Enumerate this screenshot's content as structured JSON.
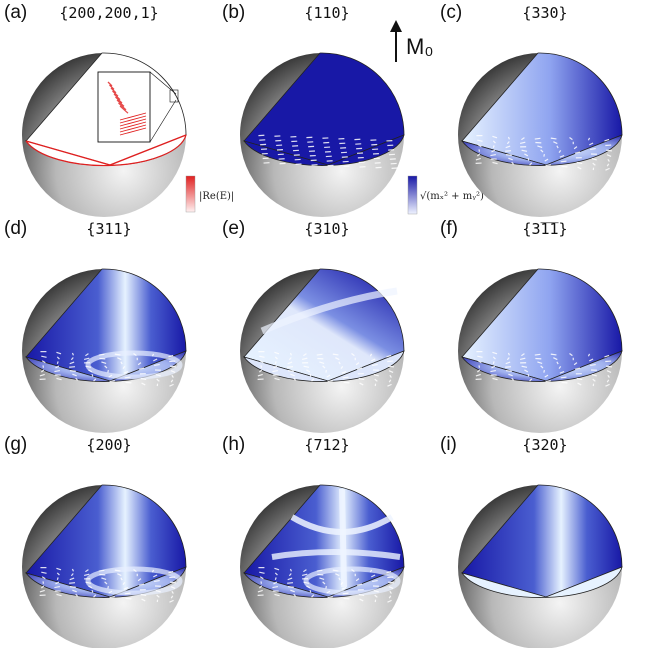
{
  "panels": [
    {
      "id": "a",
      "label": "(a)",
      "mode": "{200,200,1}",
      "style": "electric"
    },
    {
      "id": "b",
      "label": "(b)",
      "mode": "{110}",
      "style": "uniform"
    },
    {
      "id": "c",
      "label": "(c)",
      "mode": "{330}",
      "style": "horizontal"
    },
    {
      "id": "d",
      "label": "(d)",
      "mode": "{311}",
      "style": "vband"
    },
    {
      "id": "e",
      "label": "(e)",
      "mode": "{310}",
      "style": "diagonal"
    },
    {
      "id": "f",
      "label": "(f)",
      "mode": "{3̅1̅1}",
      "style": "horizontal"
    },
    {
      "id": "g",
      "label": "(g)",
      "mode": "{200}",
      "style": "vband"
    },
    {
      "id": "h",
      "label": "(h)",
      "mode": "{712}",
      "style": "grid"
    },
    {
      "id": "i",
      "label": "(i)",
      "mode": "{320}",
      "style": "vband-empty-floor"
    }
  ],
  "colorbar_electric": {
    "label": "|Re(E)|",
    "color": "#e02020"
  },
  "colorbar_magnetic": {
    "label": "√(mₓ² + mᵧ²)",
    "color": "#1a1aa8"
  },
  "magnetization_label": "M₀",
  "colors": {
    "deep_blue": "#1818a6",
    "light_blue": "#e6f2ff",
    "sphere_dark": "#3a3a3a",
    "sphere_light": "#f4f4f4",
    "field_red": "#e02020"
  }
}
